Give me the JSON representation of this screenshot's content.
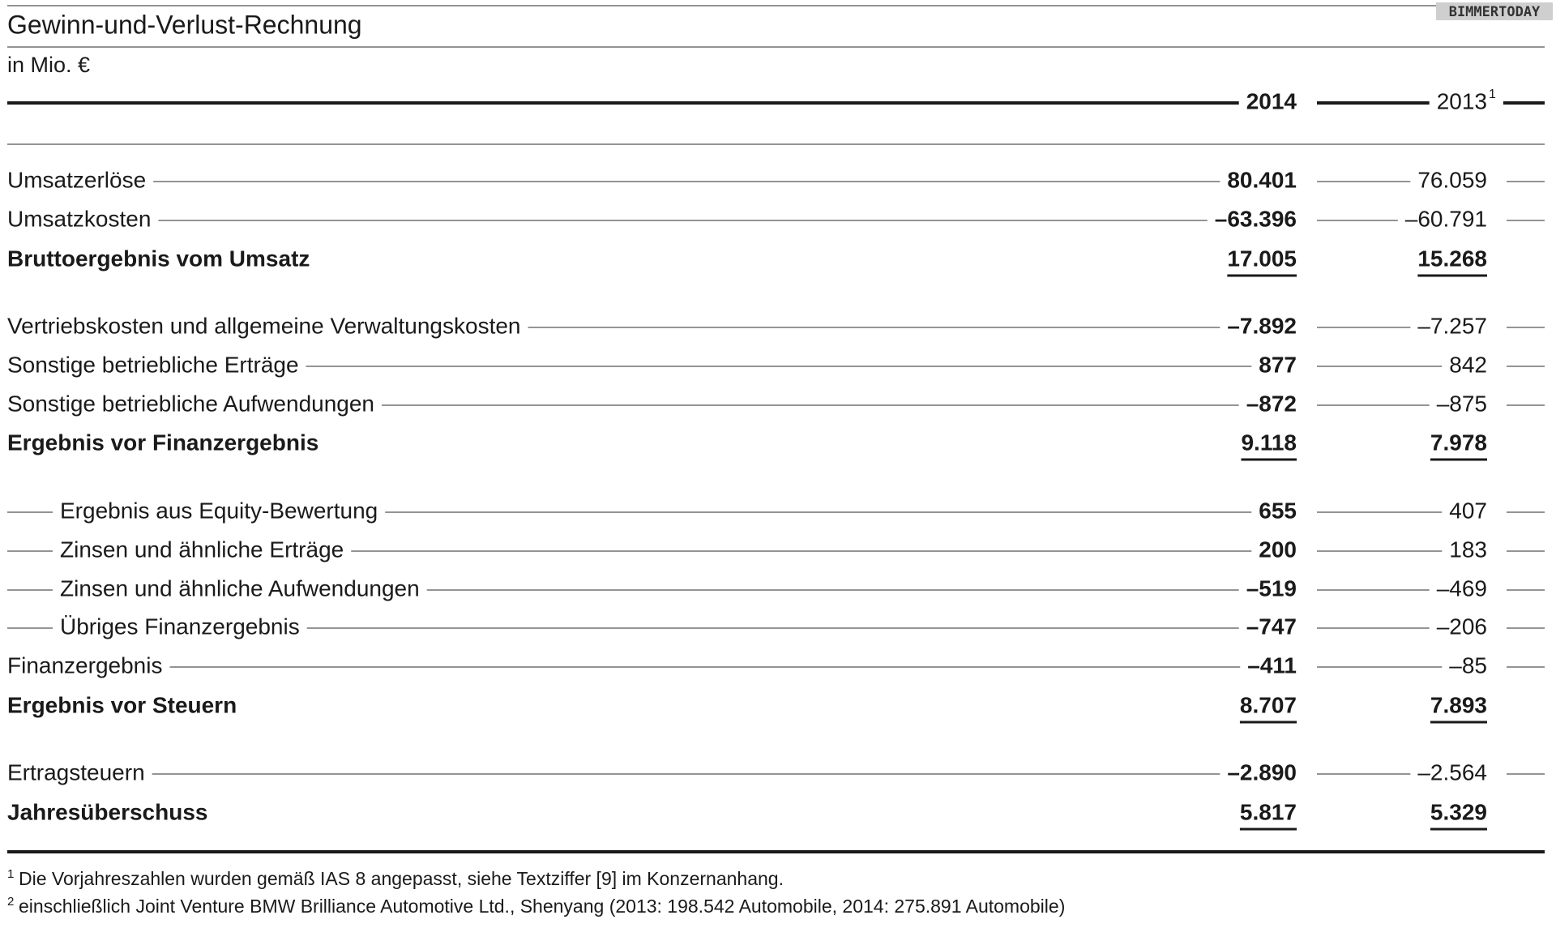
{
  "header": {
    "title": "Gewinn-und-Verlust-Rechnung",
    "unit": "in Mio. €",
    "watermark": "BIMMERTODAY"
  },
  "columns": [
    {
      "label": "2014",
      "bold": true
    },
    {
      "label": "2013",
      "note": "1",
      "bold": false
    }
  ],
  "rows": [
    {
      "label": "Umsatzerlöse",
      "values": [
        "80.401",
        "76.059"
      ],
      "style": "normal"
    },
    {
      "label": "Umsatzkosten",
      "values": [
        "–63.396",
        "–60.791"
      ],
      "style": "normal"
    },
    {
      "label": "Bruttoergebnis vom Umsatz",
      "values": [
        "17.005",
        "15.268"
      ],
      "style": "total"
    },
    {
      "label": "Vertriebskosten und allgemeine Verwaltungskosten",
      "values": [
        "–7.892",
        "–7.257"
      ],
      "style": "normal"
    },
    {
      "label": "Sonstige betriebliche Erträge",
      "values": [
        "877",
        "842"
      ],
      "style": "normal"
    },
    {
      "label": "Sonstige betriebliche Aufwendungen",
      "values": [
        "–872",
        "–875"
      ],
      "style": "normal"
    },
    {
      "label": "Ergebnis vor Finanzergebnis",
      "values": [
        "9.118",
        "7.978"
      ],
      "style": "total"
    },
    {
      "label": "Ergebnis aus Equity-Bewertung",
      "values": [
        "655",
        "407"
      ],
      "style": "indent"
    },
    {
      "label": "Zinsen und ähnliche Erträge",
      "values": [
        "200",
        "183"
      ],
      "style": "indent"
    },
    {
      "label": "Zinsen und ähnliche Aufwendungen",
      "values": [
        "–519",
        "–469"
      ],
      "style": "indent"
    },
    {
      "label": "Übriges Finanzergebnis",
      "values": [
        "–747",
        "–206"
      ],
      "style": "indent"
    },
    {
      "label": "Finanzergebnis",
      "values": [
        "–411",
        "–85"
      ],
      "style": "normal"
    },
    {
      "label": "Ergebnis vor Steuern",
      "values": [
        "8.707",
        "7.893"
      ],
      "style": "total"
    },
    {
      "label": "Ertragsteuern",
      "values": [
        "–2.890",
        "–2.564"
      ],
      "style": "normal"
    },
    {
      "label": "Jahresüberschuss",
      "values": [
        "5.817",
        "5.329"
      ],
      "style": "total"
    }
  ],
  "footnotes": [
    {
      "mark": "1",
      "text": "Die Vorjahreszahlen wurden gemäß IAS 8 angepasst, siehe Textziffer [9] im Konzernanhang."
    },
    {
      "mark": "2",
      "text": "einschließlich Joint Venture BMW Brilliance Automotive Ltd., Shenyang (2013: 198.542 Automobile, 2014: 275.891 Automobile)"
    }
  ]
}
